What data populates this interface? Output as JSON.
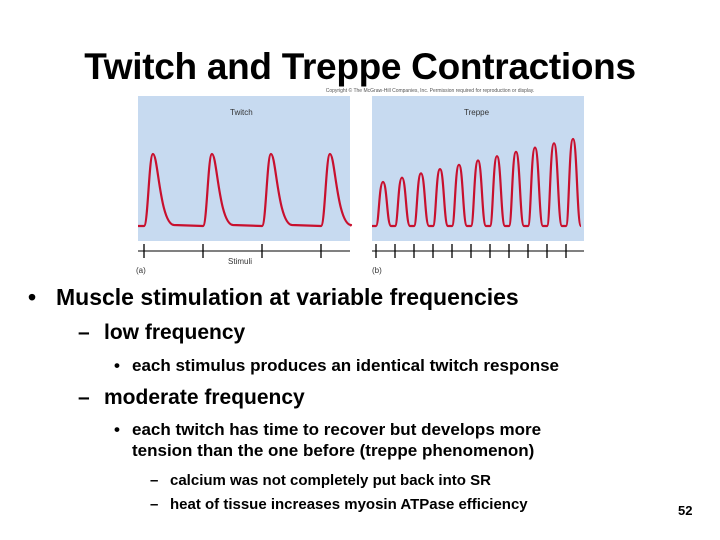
{
  "slide": {
    "title": "Twitch and Treppe Contractions",
    "page_number": "52"
  },
  "figure": {
    "copyright": "Copyright © The McGraw-Hill Companies, Inc. Permission required for reproduction or display.",
    "panel_a": {
      "title": "Twitch",
      "letter": "(a)",
      "axis_label": "Stimuli"
    },
    "panel_b": {
      "title": "Treppe",
      "letter": "(b)"
    },
    "colors": {
      "background": "#c7daf0",
      "trace": "#c8102e",
      "stimulus": "#000000"
    }
  },
  "bullets": {
    "main": "Muscle stimulation at variable frequencies",
    "low": {
      "label": "low frequency",
      "detail": "each stimulus produces an identical twitch response"
    },
    "moderate": {
      "label": "moderate frequency",
      "detail_line1": "each twitch has time to recover but develops more",
      "detail_line2": "tension than the one before (treppe phenomenon)",
      "sub1": "calcium was not completely put back into SR",
      "sub2": "heat of tissue increases myosin ATPase efficiency"
    }
  }
}
